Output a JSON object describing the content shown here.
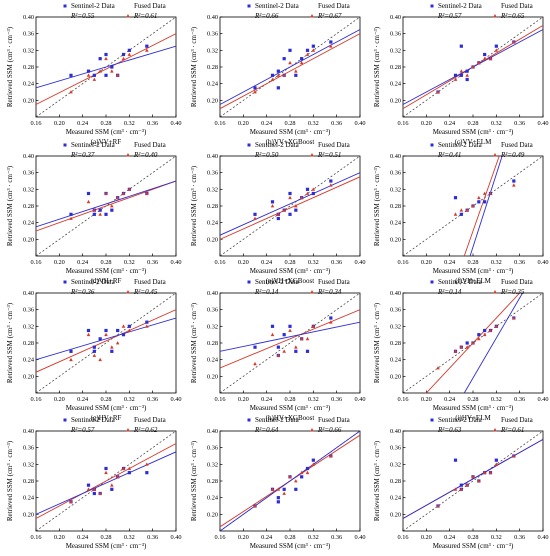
{
  "figure": {
    "axis": {
      "xlabel": "Measured SSM (cm³ · cm⁻³)",
      "ylabel": "Retrieved SSM (cm³ · cm⁻³)",
      "xticks": [
        "0.16",
        "0.20",
        "0.24",
        "0.28",
        "0.32",
        "0.36",
        "0.40"
      ],
      "yticks": [
        "0.20",
        "0.24",
        "0.28",
        "0.32",
        "0.36",
        "0.40"
      ]
    },
    "legend": {
      "s2": "Sentinel-2 Data",
      "fused": "Fused Data"
    },
    "colors": {
      "s2": "#2d2dd6",
      "fused": "#d63a2a",
      "one_to_one": "#333333"
    }
  },
  "chart_data": [
    {
      "type": "scatter",
      "caption": "(a)VV+RF",
      "xlim": [
        0.16,
        0.4
      ],
      "ylim": [
        0.16,
        0.4
      ],
      "r2_s2": "R²=0.55",
      "r2_fused": "R²=0.61",
      "series": [
        {
          "name": "Sentinel-2 Data",
          "x": [
            0.22,
            0.25,
            0.26,
            0.27,
            0.28,
            0.28,
            0.29,
            0.3,
            0.31,
            0.32,
            0.35
          ],
          "y": [
            0.26,
            0.27,
            0.26,
            0.3,
            0.31,
            0.26,
            0.28,
            0.26,
            0.31,
            0.32,
            0.33
          ],
          "fit": [
            [
              0.16,
              0.23
            ],
            [
              0.4,
              0.33
            ]
          ]
        },
        {
          "name": "Fused Data",
          "x": [
            0.22,
            0.25,
            0.26,
            0.27,
            0.28,
            0.29,
            0.3,
            0.31,
            0.32,
            0.35
          ],
          "y": [
            0.22,
            0.26,
            0.25,
            0.27,
            0.3,
            0.27,
            0.26,
            0.3,
            0.31,
            0.32
          ],
          "fit": [
            [
              0.16,
              0.19
            ],
            [
              0.4,
              0.36
            ]
          ]
        }
      ]
    },
    {
      "type": "scatter",
      "caption": "(b)VV+XGBoost",
      "xlim": [
        0.16,
        0.4
      ],
      "ylim": [
        0.16,
        0.4
      ],
      "r2_s2": "R²=0.66",
      "r2_fused": "R²=0.67",
      "series": [
        {
          "name": "Sentinel-2 Data",
          "x": [
            0.22,
            0.25,
            0.26,
            0.26,
            0.27,
            0.27,
            0.28,
            0.29,
            0.3,
            0.31,
            0.32,
            0.35
          ],
          "y": [
            0.23,
            0.26,
            0.27,
            0.23,
            0.26,
            0.3,
            0.32,
            0.26,
            0.3,
            0.32,
            0.33,
            0.34
          ],
          "fit": [
            [
              0.16,
              0.19
            ],
            [
              0.4,
              0.37
            ]
          ]
        },
        {
          "name": "Fused Data",
          "x": [
            0.22,
            0.25,
            0.26,
            0.27,
            0.28,
            0.29,
            0.3,
            0.31,
            0.32,
            0.35
          ],
          "y": [
            0.22,
            0.25,
            0.26,
            0.26,
            0.29,
            0.27,
            0.29,
            0.31,
            0.32,
            0.33
          ],
          "fit": [
            [
              0.16,
              0.18
            ],
            [
              0.4,
              0.36
            ]
          ]
        }
      ]
    },
    {
      "type": "scatter",
      "caption": "(c)VV+ELM",
      "xlim": [
        0.16,
        0.4
      ],
      "ylim": [
        0.16,
        0.4
      ],
      "r2_s2": "R²=0.57",
      "r2_fused": "R²=0.65",
      "series": [
        {
          "name": "Sentinel-2 Data",
          "x": [
            0.22,
            0.25,
            0.26,
            0.26,
            0.27,
            0.27,
            0.28,
            0.29,
            0.3,
            0.31,
            0.32,
            0.35
          ],
          "y": [
            0.22,
            0.26,
            0.26,
            0.33,
            0.27,
            0.25,
            0.28,
            0.29,
            0.31,
            0.3,
            0.33,
            0.34
          ],
          "fit": [
            [
              0.16,
              0.19
            ],
            [
              0.4,
              0.37
            ]
          ]
        },
        {
          "name": "Fused Data",
          "x": [
            0.22,
            0.25,
            0.26,
            0.27,
            0.28,
            0.29,
            0.3,
            0.31,
            0.32,
            0.35
          ],
          "y": [
            0.22,
            0.25,
            0.27,
            0.26,
            0.28,
            0.29,
            0.3,
            0.3,
            0.32,
            0.34
          ],
          "fit": [
            [
              0.16,
              0.18
            ],
            [
              0.4,
              0.38
            ]
          ]
        }
      ]
    },
    {
      "type": "scatter",
      "caption": "(d)VH+RF",
      "xlim": [
        0.16,
        0.4
      ],
      "ylim": [
        0.16,
        0.4
      ],
      "r2_s2": "R²=0.37",
      "r2_fused": "R²=0.40",
      "series": [
        {
          "name": "Sentinel-2 Data",
          "x": [
            0.22,
            0.25,
            0.26,
            0.26,
            0.27,
            0.28,
            0.28,
            0.29,
            0.3,
            0.31,
            0.32,
            0.35
          ],
          "y": [
            0.26,
            0.31,
            0.26,
            0.27,
            0.27,
            0.31,
            0.26,
            0.27,
            0.3,
            0.31,
            0.32,
            0.31
          ],
          "fit": [
            [
              0.16,
              0.23
            ],
            [
              0.4,
              0.34
            ]
          ]
        },
        {
          "name": "Fused Data",
          "x": [
            0.22,
            0.25,
            0.26,
            0.27,
            0.28,
            0.29,
            0.3,
            0.31,
            0.32,
            0.35
          ],
          "y": [
            0.25,
            0.29,
            0.27,
            0.26,
            0.31,
            0.28,
            0.3,
            0.31,
            0.32,
            0.31
          ],
          "fit": [
            [
              0.16,
              0.22
            ],
            [
              0.4,
              0.34
            ]
          ]
        }
      ]
    },
    {
      "type": "scatter",
      "caption": "(e)VH+XGBoost",
      "xlim": [
        0.16,
        0.4
      ],
      "ylim": [
        0.16,
        0.4
      ],
      "r2_s2": "R²=0.50",
      "r2_fused": "R²=0.51",
      "series": [
        {
          "name": "Sentinel-2 Data",
          "x": [
            0.22,
            0.25,
            0.26,
            0.26,
            0.27,
            0.28,
            0.28,
            0.29,
            0.3,
            0.31,
            0.32,
            0.35
          ],
          "y": [
            0.26,
            0.29,
            0.26,
            0.25,
            0.27,
            0.31,
            0.26,
            0.27,
            0.3,
            0.32,
            0.31,
            0.34
          ],
          "fit": [
            [
              0.16,
              0.21
            ],
            [
              0.4,
              0.36
            ]
          ]
        },
        {
          "name": "Fused Data",
          "x": [
            0.22,
            0.25,
            0.26,
            0.27,
            0.28,
            0.29,
            0.3,
            0.31,
            0.32,
            0.35
          ],
          "y": [
            0.25,
            0.28,
            0.26,
            0.27,
            0.3,
            0.28,
            0.3,
            0.31,
            0.32,
            0.33
          ],
          "fit": [
            [
              0.16,
              0.2
            ],
            [
              0.4,
              0.35
            ]
          ]
        }
      ]
    },
    {
      "type": "scatter",
      "caption": "(f)VH+ELM",
      "xlim": [
        0.16,
        0.4
      ],
      "ylim": [
        0.16,
        0.4
      ],
      "r2_s2": "R²=0.41",
      "r2_fused": "R²=0.49",
      "series": [
        {
          "name": "Sentinel-2 Data",
          "x": [
            0.25,
            0.26,
            0.27,
            0.28,
            0.29,
            0.3,
            0.31,
            0.35
          ],
          "y": [
            0.3,
            0.26,
            0.27,
            0.28,
            0.29,
            0.29,
            0.31,
            0.34
          ],
          "fit": [
            [
              0.275,
              0.16
            ],
            [
              0.33,
              0.4
            ]
          ]
        },
        {
          "name": "Fused Data",
          "x": [
            0.25,
            0.26,
            0.27,
            0.28,
            0.29,
            0.3,
            0.31,
            0.35
          ],
          "y": [
            0.26,
            0.27,
            0.27,
            0.28,
            0.3,
            0.31,
            0.31,
            0.33
          ],
          "fit": [
            [
              0.265,
              0.16
            ],
            [
              0.325,
              0.4
            ]
          ]
        }
      ]
    },
    {
      "type": "scatter",
      "caption": "(g)HV+RF",
      "xlim": [
        0.16,
        0.4
      ],
      "ylim": [
        0.16,
        0.4
      ],
      "r2_s2": "R²=0.36",
      "r2_fused": "R²=0.45",
      "series": [
        {
          "name": "Sentinel-2 Data",
          "x": [
            0.22,
            0.25,
            0.26,
            0.26,
            0.27,
            0.28,
            0.29,
            0.3,
            0.31,
            0.32,
            0.35
          ],
          "y": [
            0.26,
            0.31,
            0.27,
            0.26,
            0.29,
            0.31,
            0.26,
            0.31,
            0.3,
            0.32,
            0.33
          ],
          "fit": [
            [
              0.16,
              0.24
            ],
            [
              0.4,
              0.34
            ]
          ]
        },
        {
          "name": "Fused Data",
          "x": [
            0.22,
            0.25,
            0.26,
            0.27,
            0.28,
            0.29,
            0.3,
            0.31,
            0.32,
            0.35
          ],
          "y": [
            0.24,
            0.3,
            0.25,
            0.24,
            0.3,
            0.27,
            0.28,
            0.32,
            0.31,
            0.32
          ],
          "fit": [
            [
              0.16,
              0.21
            ],
            [
              0.4,
              0.36
            ]
          ]
        }
      ]
    },
    {
      "type": "scatter",
      "caption": "(h)HV+XGBoost",
      "xlim": [
        0.16,
        0.4
      ],
      "ylim": [
        0.16,
        0.4
      ],
      "r2_s2": "R²=0.14",
      "r2_fused": "R²=0.34",
      "series": [
        {
          "name": "Sentinel-2 Data",
          "x": [
            0.22,
            0.25,
            0.26,
            0.26,
            0.27,
            0.28,
            0.29,
            0.3,
            0.31,
            0.32,
            0.35
          ],
          "y": [
            0.27,
            0.32,
            0.27,
            0.25,
            0.3,
            0.32,
            0.26,
            0.29,
            0.26,
            0.32,
            0.34
          ],
          "fit": [
            [
              0.16,
              0.26
            ],
            [
              0.4,
              0.33
            ]
          ]
        },
        {
          "name": "Fused Data",
          "x": [
            0.22,
            0.25,
            0.26,
            0.27,
            0.28,
            0.29,
            0.3,
            0.31,
            0.32,
            0.35
          ],
          "y": [
            0.23,
            0.3,
            0.25,
            0.26,
            0.31,
            0.27,
            0.29,
            0.29,
            0.32,
            0.33
          ],
          "fit": [
            [
              0.16,
              0.22
            ],
            [
              0.4,
              0.36
            ]
          ]
        }
      ]
    },
    {
      "type": "scatter",
      "caption": "(i)HV+ELM",
      "xlim": [
        0.16,
        0.4
      ],
      "ylim": [
        0.16,
        0.4
      ],
      "r2_s2": "R²=0.14",
      "r2_fused": "R²=0.35",
      "series": [
        {
          "name": "Sentinel-2 Data",
          "x": [
            0.25,
            0.26,
            0.27,
            0.28,
            0.29,
            0.3,
            0.31,
            0.32,
            0.35
          ],
          "y": [
            0.26,
            0.27,
            0.28,
            0.28,
            0.3,
            0.31,
            0.31,
            0.32,
            0.34
          ],
          "fit": [
            [
              0.265,
              0.16
            ],
            [
              0.365,
              0.4
            ]
          ]
        },
        {
          "name": "Fused Data",
          "x": [
            0.22,
            0.25,
            0.26,
            0.27,
            0.28,
            0.29,
            0.3,
            0.31,
            0.32,
            0.35
          ],
          "y": [
            0.22,
            0.26,
            0.27,
            0.27,
            0.28,
            0.29,
            0.3,
            0.31,
            0.32,
            0.34
          ],
          "fit": [
            [
              0.16,
              0.1
            ],
            [
              0.4,
              0.46
            ]
          ]
        }
      ]
    },
    {
      "type": "scatter",
      "caption": "(j)HH+RF",
      "xlim": [
        0.16,
        0.4
      ],
      "ylim": [
        0.16,
        0.4
      ],
      "r2_s2": "R²=0.57",
      "r2_fused": "R²=0.62",
      "series": [
        {
          "name": "Sentinel-2 Data",
          "x": [
            0.22,
            0.25,
            0.26,
            0.26,
            0.27,
            0.28,
            0.29,
            0.3,
            0.31,
            0.32,
            0.35
          ],
          "y": [
            0.23,
            0.27,
            0.25,
            0.26,
            0.25,
            0.31,
            0.26,
            0.29,
            0.31,
            0.3,
            0.3
          ],
          "fit": [
            [
              0.16,
              0.2
            ],
            [
              0.4,
              0.35
            ]
          ]
        },
        {
          "name": "Fused Data",
          "x": [
            0.22,
            0.25,
            0.26,
            0.27,
            0.28,
            0.29,
            0.3,
            0.31,
            0.32,
            0.35
          ],
          "y": [
            0.23,
            0.26,
            0.26,
            0.25,
            0.3,
            0.27,
            0.29,
            0.31,
            0.31,
            0.32
          ],
          "fit": [
            [
              0.16,
              0.19
            ],
            [
              0.4,
              0.37
            ]
          ]
        }
      ]
    },
    {
      "type": "scatter",
      "caption": "(k)HH+XGBoost",
      "xlim": [
        0.16,
        0.4
      ],
      "ylim": [
        0.16,
        0.4
      ],
      "r2_s2": "R²=0.64",
      "r2_fused": "R²=0.66",
      "series": [
        {
          "name": "Sentinel-2 Data",
          "x": [
            0.22,
            0.25,
            0.26,
            0.26,
            0.27,
            0.28,
            0.29,
            0.3,
            0.31,
            0.32,
            0.35
          ],
          "y": [
            0.22,
            0.26,
            0.24,
            0.23,
            0.26,
            0.29,
            0.26,
            0.29,
            0.31,
            0.33,
            0.34
          ],
          "fit": [
            [
              0.16,
              0.16
            ],
            [
              0.4,
              0.4
            ]
          ]
        },
        {
          "name": "Fused Data",
          "x": [
            0.22,
            0.25,
            0.26,
            0.27,
            0.28,
            0.29,
            0.3,
            0.31,
            0.32,
            0.35
          ],
          "y": [
            0.22,
            0.26,
            0.26,
            0.25,
            0.29,
            0.28,
            0.3,
            0.3,
            0.32,
            0.34
          ],
          "fit": [
            [
              0.16,
              0.17
            ],
            [
              0.4,
              0.39
            ]
          ]
        }
      ]
    },
    {
      "type": "scatter",
      "caption": "(l)HH+ELM",
      "xlim": [
        0.16,
        0.4
      ],
      "ylim": [
        0.16,
        0.4
      ],
      "r2_s2": "R²=0.63",
      "r2_fused": "R²=0.61",
      "series": [
        {
          "name": "Sentinel-2 Data",
          "x": [
            0.22,
            0.25,
            0.26,
            0.26,
            0.27,
            0.28,
            0.29,
            0.3,
            0.31,
            0.32,
            0.35
          ],
          "y": [
            0.22,
            0.33,
            0.26,
            0.27,
            0.27,
            0.29,
            0.28,
            0.3,
            0.3,
            0.33,
            0.34
          ],
          "fit": [
            [
              0.16,
              0.19
            ],
            [
              0.4,
              0.38
            ]
          ]
        },
        {
          "name": "Fused Data",
          "x": [
            0.22,
            0.25,
            0.26,
            0.27,
            0.28,
            0.29,
            0.3,
            0.31,
            0.32,
            0.35
          ],
          "y": [
            0.22,
            0.26,
            0.26,
            0.27,
            0.29,
            0.28,
            0.3,
            0.3,
            0.32,
            0.34
          ],
          "fit": [
            [
              0.16,
              0.19
            ],
            [
              0.4,
              0.38
            ]
          ]
        }
      ]
    }
  ]
}
